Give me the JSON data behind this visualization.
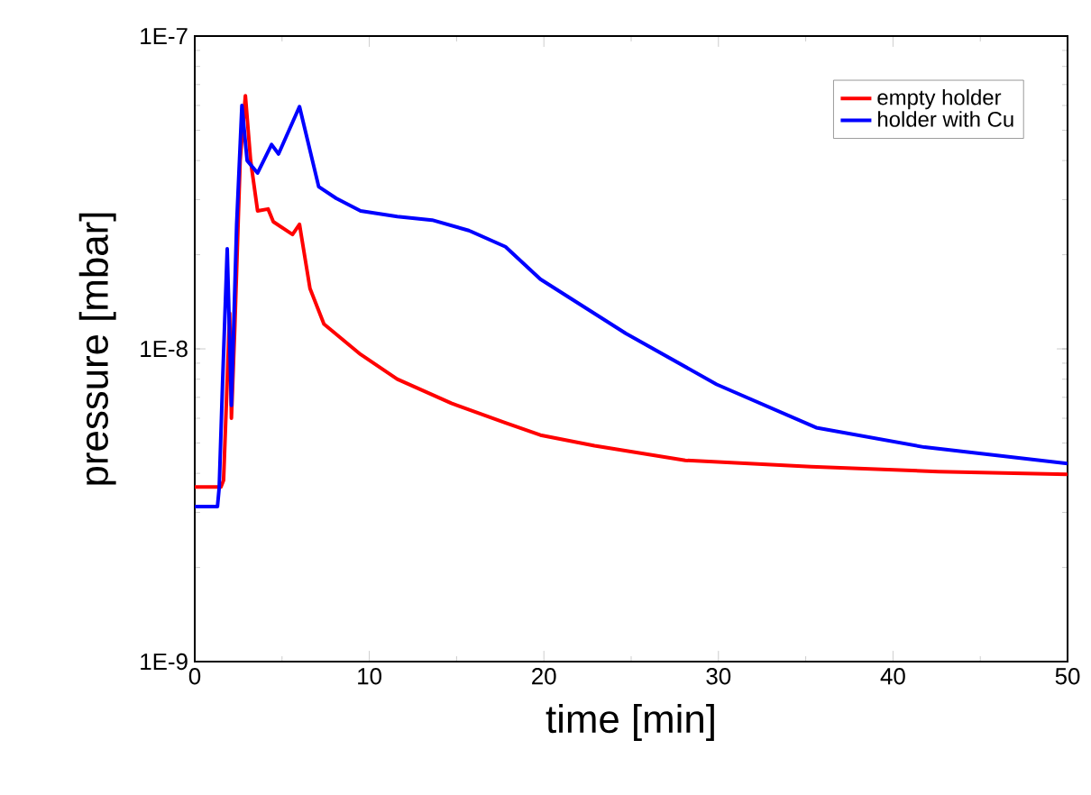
{
  "chart_data": {
    "type": "line",
    "xlabel": "time [min]",
    "ylabel": "pressure [mbar]",
    "log": "y",
    "xlim": [
      0,
      50
    ],
    "ylim": [
      1e-09,
      1e-07
    ],
    "xticks": [
      0,
      10,
      20,
      30,
      40,
      50
    ],
    "yticks": [
      {
        "value": 1e-09,
        "label": "1E-9"
      },
      {
        "value": 1e-08,
        "label": "1E-8"
      },
      {
        "value": 1e-07,
        "label": "1E-7"
      }
    ],
    "legend": "top right",
    "grid": false,
    "marker": "none",
    "line_style": "solid",
    "series": [
      {
        "name": "empty holder",
        "color": "#ff0000",
        "x": [
          0,
          1.5,
          1.65,
          2.0,
          2.1,
          2.3,
          2.6,
          2.9,
          3.2,
          3.6,
          4.2,
          4.5,
          5.6,
          6.0,
          6.6,
          7.4,
          9.5,
          11.6,
          14.7,
          17.8,
          19.8,
          22.9,
          28.1,
          35.3,
          42.6,
          50
        ],
        "values": [
          3.62e-09,
          3.62e-09,
          3.8e-09,
          1.3e-08,
          6e-09,
          1.2e-08,
          4e-08,
          6.45e-08,
          4e-08,
          2.76e-08,
          2.8e-08,
          2.55e-08,
          2.32e-08,
          2.5e-08,
          1.56e-08,
          1.2e-08,
          9.6e-09,
          8e-09,
          6.7e-09,
          5.8e-09,
          5.3e-09,
          4.9e-09,
          4.4e-09,
          4.2e-09,
          4.05e-09,
          3.97e-09
        ]
      },
      {
        "name": "holder with Cu",
        "color": "#0000ff",
        "x": [
          0,
          1.3,
          1.4,
          1.6,
          1.86,
          2.1,
          2.4,
          2.7,
          3.0,
          3.6,
          4.4,
          4.8,
          6.0,
          7.1,
          8.1,
          9.5,
          11.6,
          13.6,
          15.7,
          17.8,
          19.8,
          24.7,
          29.9,
          35.6,
          41.8,
          50
        ],
        "values": [
          3.13e-09,
          3.13e-09,
          3.6e-09,
          8e-09,
          2.09e-08,
          6.6e-09,
          2.5e-08,
          6e-08,
          4e-08,
          3.65e-08,
          4.5e-08,
          4.2e-08,
          5.95e-08,
          3.3e-08,
          3.03e-08,
          2.76e-08,
          2.65e-08,
          2.58e-08,
          2.39e-08,
          2.12e-08,
          1.67e-08,
          1.12e-08,
          7.7e-09,
          5.6e-09,
          4.85e-09,
          4.3e-09
        ]
      }
    ]
  }
}
